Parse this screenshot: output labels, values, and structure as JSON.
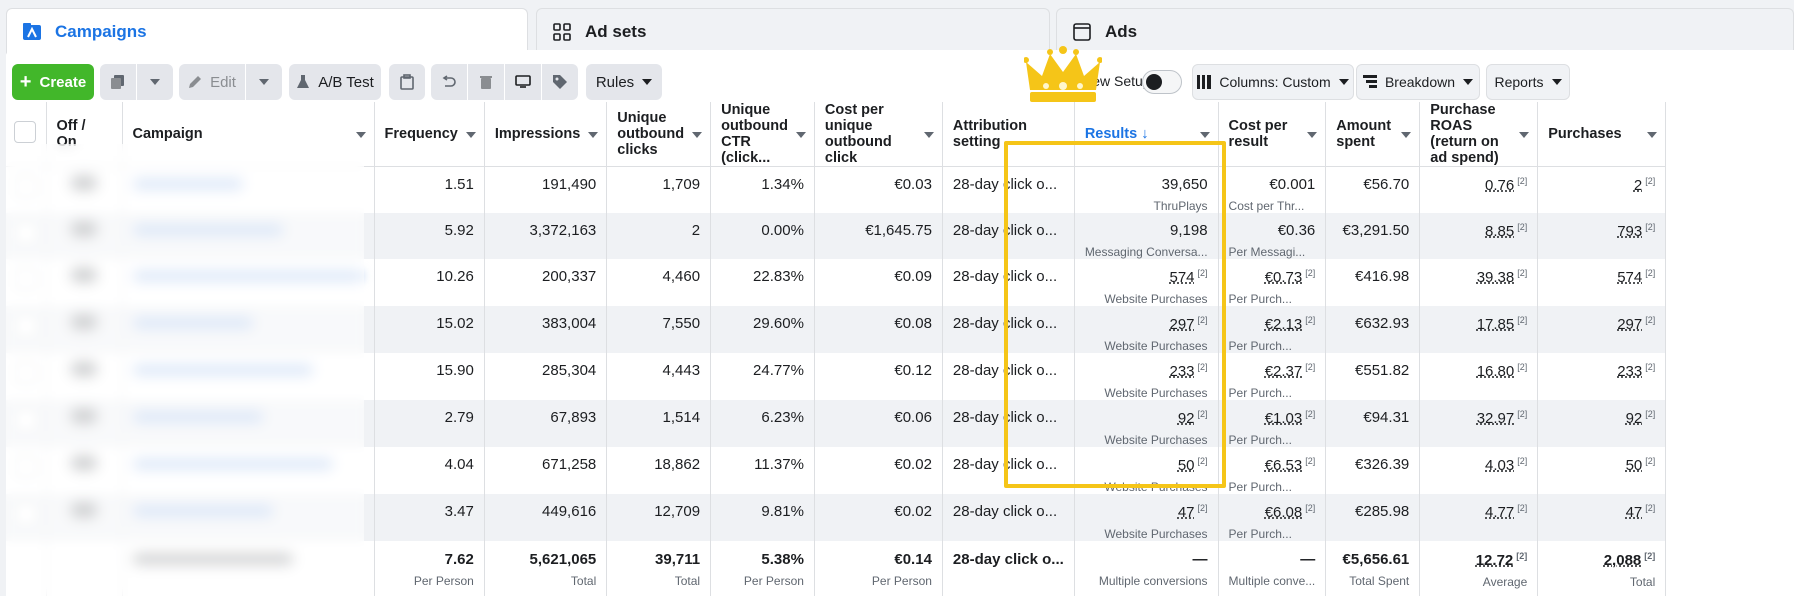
{
  "tabs": [
    {
      "label": "Campaigns"
    },
    {
      "label": "Ad sets"
    },
    {
      "label": "Ads"
    }
  ],
  "toolbar": {
    "create": "Create",
    "edit": "Edit",
    "ab_test": "A/B Test",
    "rules": "Rules",
    "view_setup": "View Setup",
    "columns": "Columns: Custom",
    "breakdown": "Breakdown",
    "reports": "Reports"
  },
  "headers": {
    "off_on": "Off / On",
    "campaign": "Campaign",
    "frequency": "Frequency",
    "impressions": "Impressions",
    "unique_outbound_clicks": "Unique outbound clicks",
    "unique_outbound_ctr": "Unique outbound CTR (click...",
    "cost_per_unique_outbound_click": "Cost per unique outbound click",
    "attribution": "Attribution setting",
    "results": "Results ↓",
    "cost_per_result": "Cost per result",
    "amount_spent": "Amount spent",
    "purchase_roas": "Purchase ROAS (return on ad spend)",
    "purchases": "Purchases"
  },
  "rows": [
    {
      "frequency": "1.51",
      "impressions": "191,490",
      "clicks": "1,709",
      "ctr": "1.34%",
      "cpc": "€0.03",
      "attribution": "28-day click o...",
      "results": "39,650",
      "results_type": "ThruPlays",
      "cpr": "€0.001",
      "cpr_type": "Cost per Thr...",
      "spent": "€56.70",
      "roas": "0.76",
      "purchases": "2"
    },
    {
      "frequency": "5.92",
      "impressions": "3,372,163",
      "clicks": "2",
      "ctr": "0.00%",
      "cpc": "€1,645.75",
      "attribution": "28-day click o...",
      "results": "9,198",
      "results_type": "Messaging Conversa...",
      "cpr": "€0.36",
      "cpr_type": "Per Messagi...",
      "spent": "€3,291.50",
      "roas": "8.85",
      "purchases": "793"
    },
    {
      "frequency": "10.26",
      "impressions": "200,337",
      "clicks": "4,460",
      "ctr": "22.83%",
      "cpc": "€0.09",
      "attribution": "28-day click o...",
      "results": "574",
      "results_type": "Website Purchases",
      "cpr": "€0.73",
      "cpr_type": "Per Purch...",
      "spent": "€416.98",
      "roas": "39.38",
      "purchases": "574"
    },
    {
      "frequency": "15.02",
      "impressions": "383,004",
      "clicks": "7,550",
      "ctr": "29.60%",
      "cpc": "€0.08",
      "attribution": "28-day click o...",
      "results": "297",
      "results_type": "Website Purchases",
      "cpr": "€2.13",
      "cpr_type": "Per Purch...",
      "spent": "€632.93",
      "roas": "17.85",
      "purchases": "297"
    },
    {
      "frequency": "15.90",
      "impressions": "285,304",
      "clicks": "4,443",
      "ctr": "24.77%",
      "cpc": "€0.12",
      "attribution": "28-day click o...",
      "results": "233",
      "results_type": "Website Purchases",
      "cpr": "€2.37",
      "cpr_type": "Per Purch...",
      "spent": "€551.82",
      "roas": "16.80",
      "purchases": "233"
    },
    {
      "frequency": "2.79",
      "impressions": "67,893",
      "clicks": "1,514",
      "ctr": "6.23%",
      "cpc": "€0.06",
      "attribution": "28-day click o...",
      "results": "92",
      "results_type": "Website Purchases",
      "cpr": "€1.03",
      "cpr_type": "Per Purch...",
      "spent": "€94.31",
      "roas": "32.97",
      "purchases": "92"
    },
    {
      "frequency": "4.04",
      "impressions": "671,258",
      "clicks": "18,862",
      "ctr": "11.37%",
      "cpc": "€0.02",
      "attribution": "28-day click o...",
      "results": "50",
      "results_type": "Website Purchases",
      "cpr": "€6.53",
      "cpr_type": "Per Purch...",
      "spent": "€326.39",
      "roas": "4.03",
      "purchases": "50"
    },
    {
      "frequency": "3.47",
      "impressions": "449,616",
      "clicks": "12,709",
      "ctr": "9.81%",
      "cpc": "€0.02",
      "attribution": "28-day click o...",
      "results": "47",
      "results_type": "Website Purchases",
      "cpr": "€6.08",
      "cpr_type": "Per Purch...",
      "spent": "€285.98",
      "roas": "4.77",
      "purchases": "47"
    }
  ],
  "footnote": "[2]",
  "totals": {
    "frequency": "7.62",
    "frequency_sub": "Per Person",
    "impressions": "5,621,065",
    "impressions_sub": "Total",
    "clicks": "39,711",
    "clicks_sub": "Total",
    "ctr": "5.38%",
    "ctr_sub": "Per Person",
    "cpc": "€0.14",
    "cpc_sub": "Per Person",
    "attribution": "28-day click o...",
    "results": "—",
    "results_sub": "Multiple conversions",
    "cpr": "—",
    "cpr_sub": "Multiple conve...",
    "spent": "€5,656.61",
    "spent_sub": "Total Spent",
    "roas": "12.72",
    "roas_sub": "Average",
    "purchases": "2,088",
    "purchases_sub": "Total"
  },
  "colors": {
    "accent": "#1b74e4",
    "create_green": "#42b72a",
    "highlight_gold": "#f5c518"
  },
  "icons": [
    "campaigns-icon",
    "ad-sets-icon",
    "ads-icon",
    "plus-icon",
    "duplicate-icon",
    "pencil-icon",
    "flask-icon",
    "clipboard-icon",
    "undo-icon",
    "trash-icon",
    "swap-icon",
    "tag-icon",
    "columns-icon",
    "breakdown-icon",
    "crown-icon"
  ]
}
